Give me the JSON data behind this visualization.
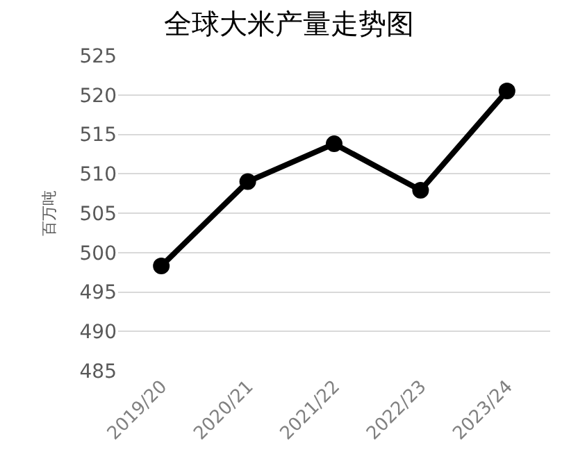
{
  "chart_data": {
    "type": "line",
    "title": "全球大米产量走势图",
    "ylabel": "百万吨",
    "categories": [
      "2019/20",
      "2020/21",
      "2021/22",
      "2022/23",
      "2023/24"
    ],
    "series": [
      {
        "color": "#000000",
        "values": [
          498.3,
          509.0,
          513.8,
          507.9,
          520.5
        ]
      }
    ],
    "ylim": [
      485,
      525
    ],
    "yticks": [
      485,
      490,
      495,
      500,
      505,
      510,
      515,
      520,
      525
    ],
    "grid": "y",
    "marker": "circle",
    "line_style": "solid",
    "legend": false
  }
}
